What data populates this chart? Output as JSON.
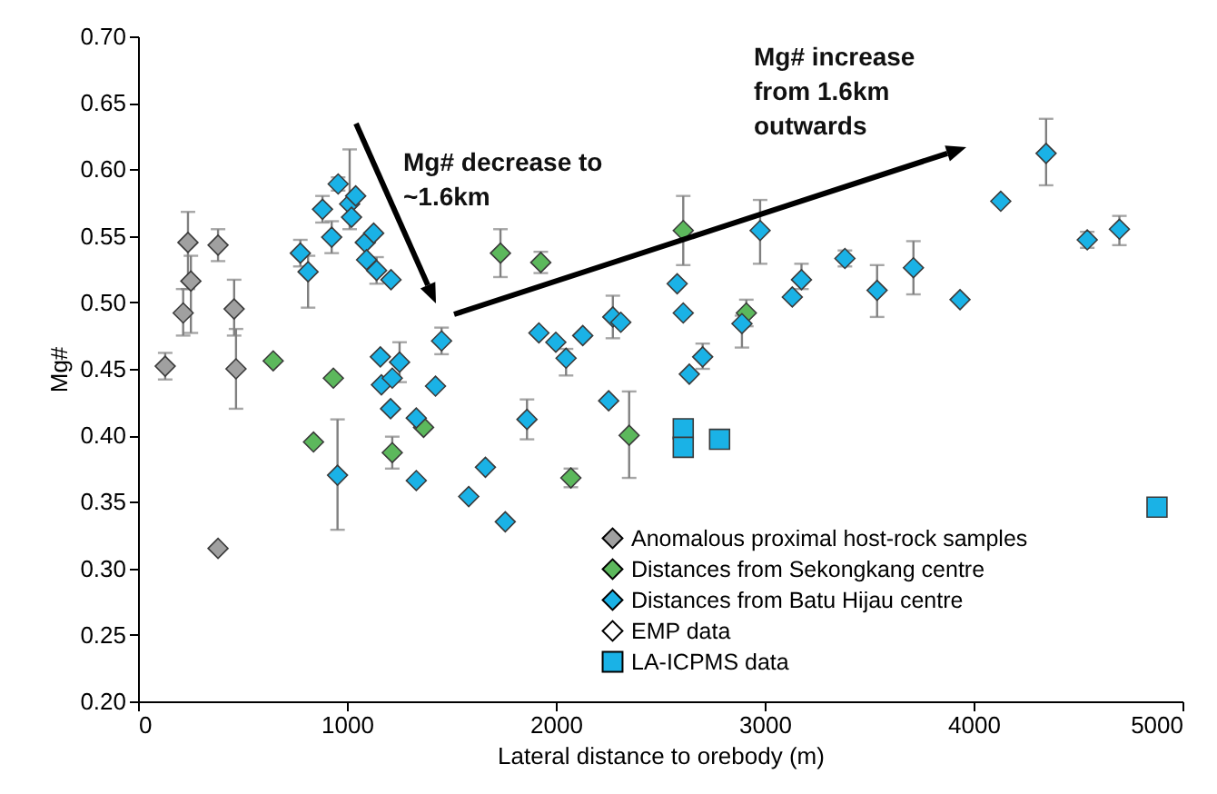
{
  "chart_data": {
    "type": "scatter",
    "xlabel": "Lateral distance to orebody (m)",
    "ylabel": "Mg#",
    "xlim": [
      0,
      5000
    ],
    "xticks": [
      0,
      1000,
      2000,
      3000,
      4000,
      5000
    ],
    "ylim": [
      0.2,
      0.7
    ],
    "yticks": [
      {
        "value": 0.2,
        "label": "0.20"
      },
      {
        "value": 0.25,
        "label": "0.25"
      },
      {
        "value": 0.3,
        "label": "0.30"
      },
      {
        "value": 0.35,
        "label": "0.35"
      },
      {
        "value": 0.4,
        "label": "0.40"
      },
      {
        "value": 0.45,
        "label": "0.45"
      },
      {
        "value": 0.5,
        "label": "0.50"
      },
      {
        "value": 0.55,
        "label": "0.55"
      },
      {
        "value": 0.6,
        "label": "0.60"
      },
      {
        "value": 0.65,
        "label": "0.65"
      },
      {
        "value": 0.7,
        "label": "0.70"
      }
    ],
    "grid": false,
    "legend": "bottom right",
    "annotations": [
      "Mg# decrease to ~1.6km",
      "Mg# increase from 1.6km outwards"
    ],
    "series": [
      {
        "name": "Anomalous proximal host-rock samples",
        "color": "#a0a0a0",
        "marker": "diamond",
        "x": [
          130,
          216,
          239,
          253,
          383,
          460,
          469,
          383
        ],
        "values": [
          0.452,
          0.492,
          0.545,
          0.516,
          0.543,
          0.495,
          0.45,
          0.315
        ],
        "errors": [
          0.01,
          [
            0.475,
            0.51
          ],
          [
            0.51,
            0.568
          ],
          [
            0.477,
            0.535
          ],
          0.012,
          [
            0.475,
            0.517
          ],
          [
            0.42,
            0.48
          ],
          null
        ]
      },
      {
        "name": "Distances from Sekongkang centre",
        "color": "#5cb85c",
        "marker": "diamond",
        "x": [
          647,
          935,
          840,
          1217,
          1367,
          1735,
          1928,
          2072,
          2351,
          2610,
          2912
        ],
        "values": [
          0.456,
          0.443,
          0.395,
          0.387,
          0.406,
          0.537,
          0.53,
          0.368,
          0.4,
          0.554,
          0.492
        ],
        "errors": [
          null,
          null,
          null,
          0.012,
          null,
          0.018,
          0.008,
          0.007,
          [
            0.368,
            0.433
          ],
          [
            0.528,
            0.58
          ],
          0.01
        ]
      },
      {
        "name": "Distances from Batu Hijau centre",
        "color": "#1ab2e6",
        "marker": "diamond",
        "x": [
          777,
          814,
          883,
          927,
          958,
          1013,
          1022,
          1042,
          1088,
          1128,
          1094,
          1142,
          1211,
          1160,
          1165,
          1217,
          1252,
          1209,
          1332,
          1424,
          1453,
          955,
          1332,
          1583,
          1663,
          1758,
          1862,
          1919,
          2000,
          2049,
          2129,
          2253,
          2273,
          2311,
          2581,
          2610,
          2639,
          2703,
          2891,
          2978,
          3132,
          3176,
          3384,
          3538,
          3712,
          3935,
          4130,
          4347,
          4544,
          4698
        ],
        "values": [
          0.537,
          0.523,
          0.57,
          0.549,
          0.589,
          0.574,
          0.564,
          0.58,
          0.545,
          0.552,
          0.532,
          0.524,
          0.517,
          0.459,
          0.438,
          0.443,
          0.455,
          0.42,
          0.413,
          0.437,
          0.471,
          0.37,
          0.366,
          0.354,
          0.376,
          0.335,
          0.412,
          0.477,
          0.47,
          0.458,
          0.475,
          0.426,
          0.489,
          0.485,
          0.514,
          0.492,
          0.446,
          0.459,
          0.484,
          0.554,
          0.504,
          0.517,
          0.533,
          0.509,
          0.526,
          0.502,
          0.576,
          0.612,
          0.547,
          0.555
        ],
        "errors": [
          0.01,
          [
            0.496,
            0.535
          ],
          0.01,
          0.012,
          0.005,
          [
            0.555,
            0.615
          ],
          null,
          null,
          null,
          null,
          null,
          0.01,
          null,
          null,
          null,
          null,
          [
            0.44,
            0.47
          ],
          null,
          null,
          null,
          0.01,
          [
            0.329,
            0.412
          ],
          null,
          null,
          null,
          null,
          0.015,
          null,
          null,
          [
            0.445,
            0.465
          ],
          null,
          null,
          0.016,
          null,
          null,
          null,
          null,
          [
            0.45,
            0.469
          ],
          [
            0.466,
            0.49
          ],
          [
            0.529,
            0.577
          ],
          null,
          [
            0.51,
            0.529
          ],
          0.006,
          [
            0.489,
            0.528
          ],
          [
            0.506,
            0.546
          ],
          null,
          null,
          [
            0.588,
            0.638
          ],
          0.006,
          [
            0.543,
            0.565
          ]
        ]
      },
      {
        "name": "EMP data",
        "color": "#ffffff",
        "marker": "diamond"
      },
      {
        "name": "LA-ICPMS data",
        "color": "#1ab2e6",
        "marker": "square",
        "x": [
          2610,
          2610,
          2784,
          4878
        ],
        "values": [
          0.405,
          0.391,
          0.397,
          0.346
        ]
      }
    ]
  }
}
